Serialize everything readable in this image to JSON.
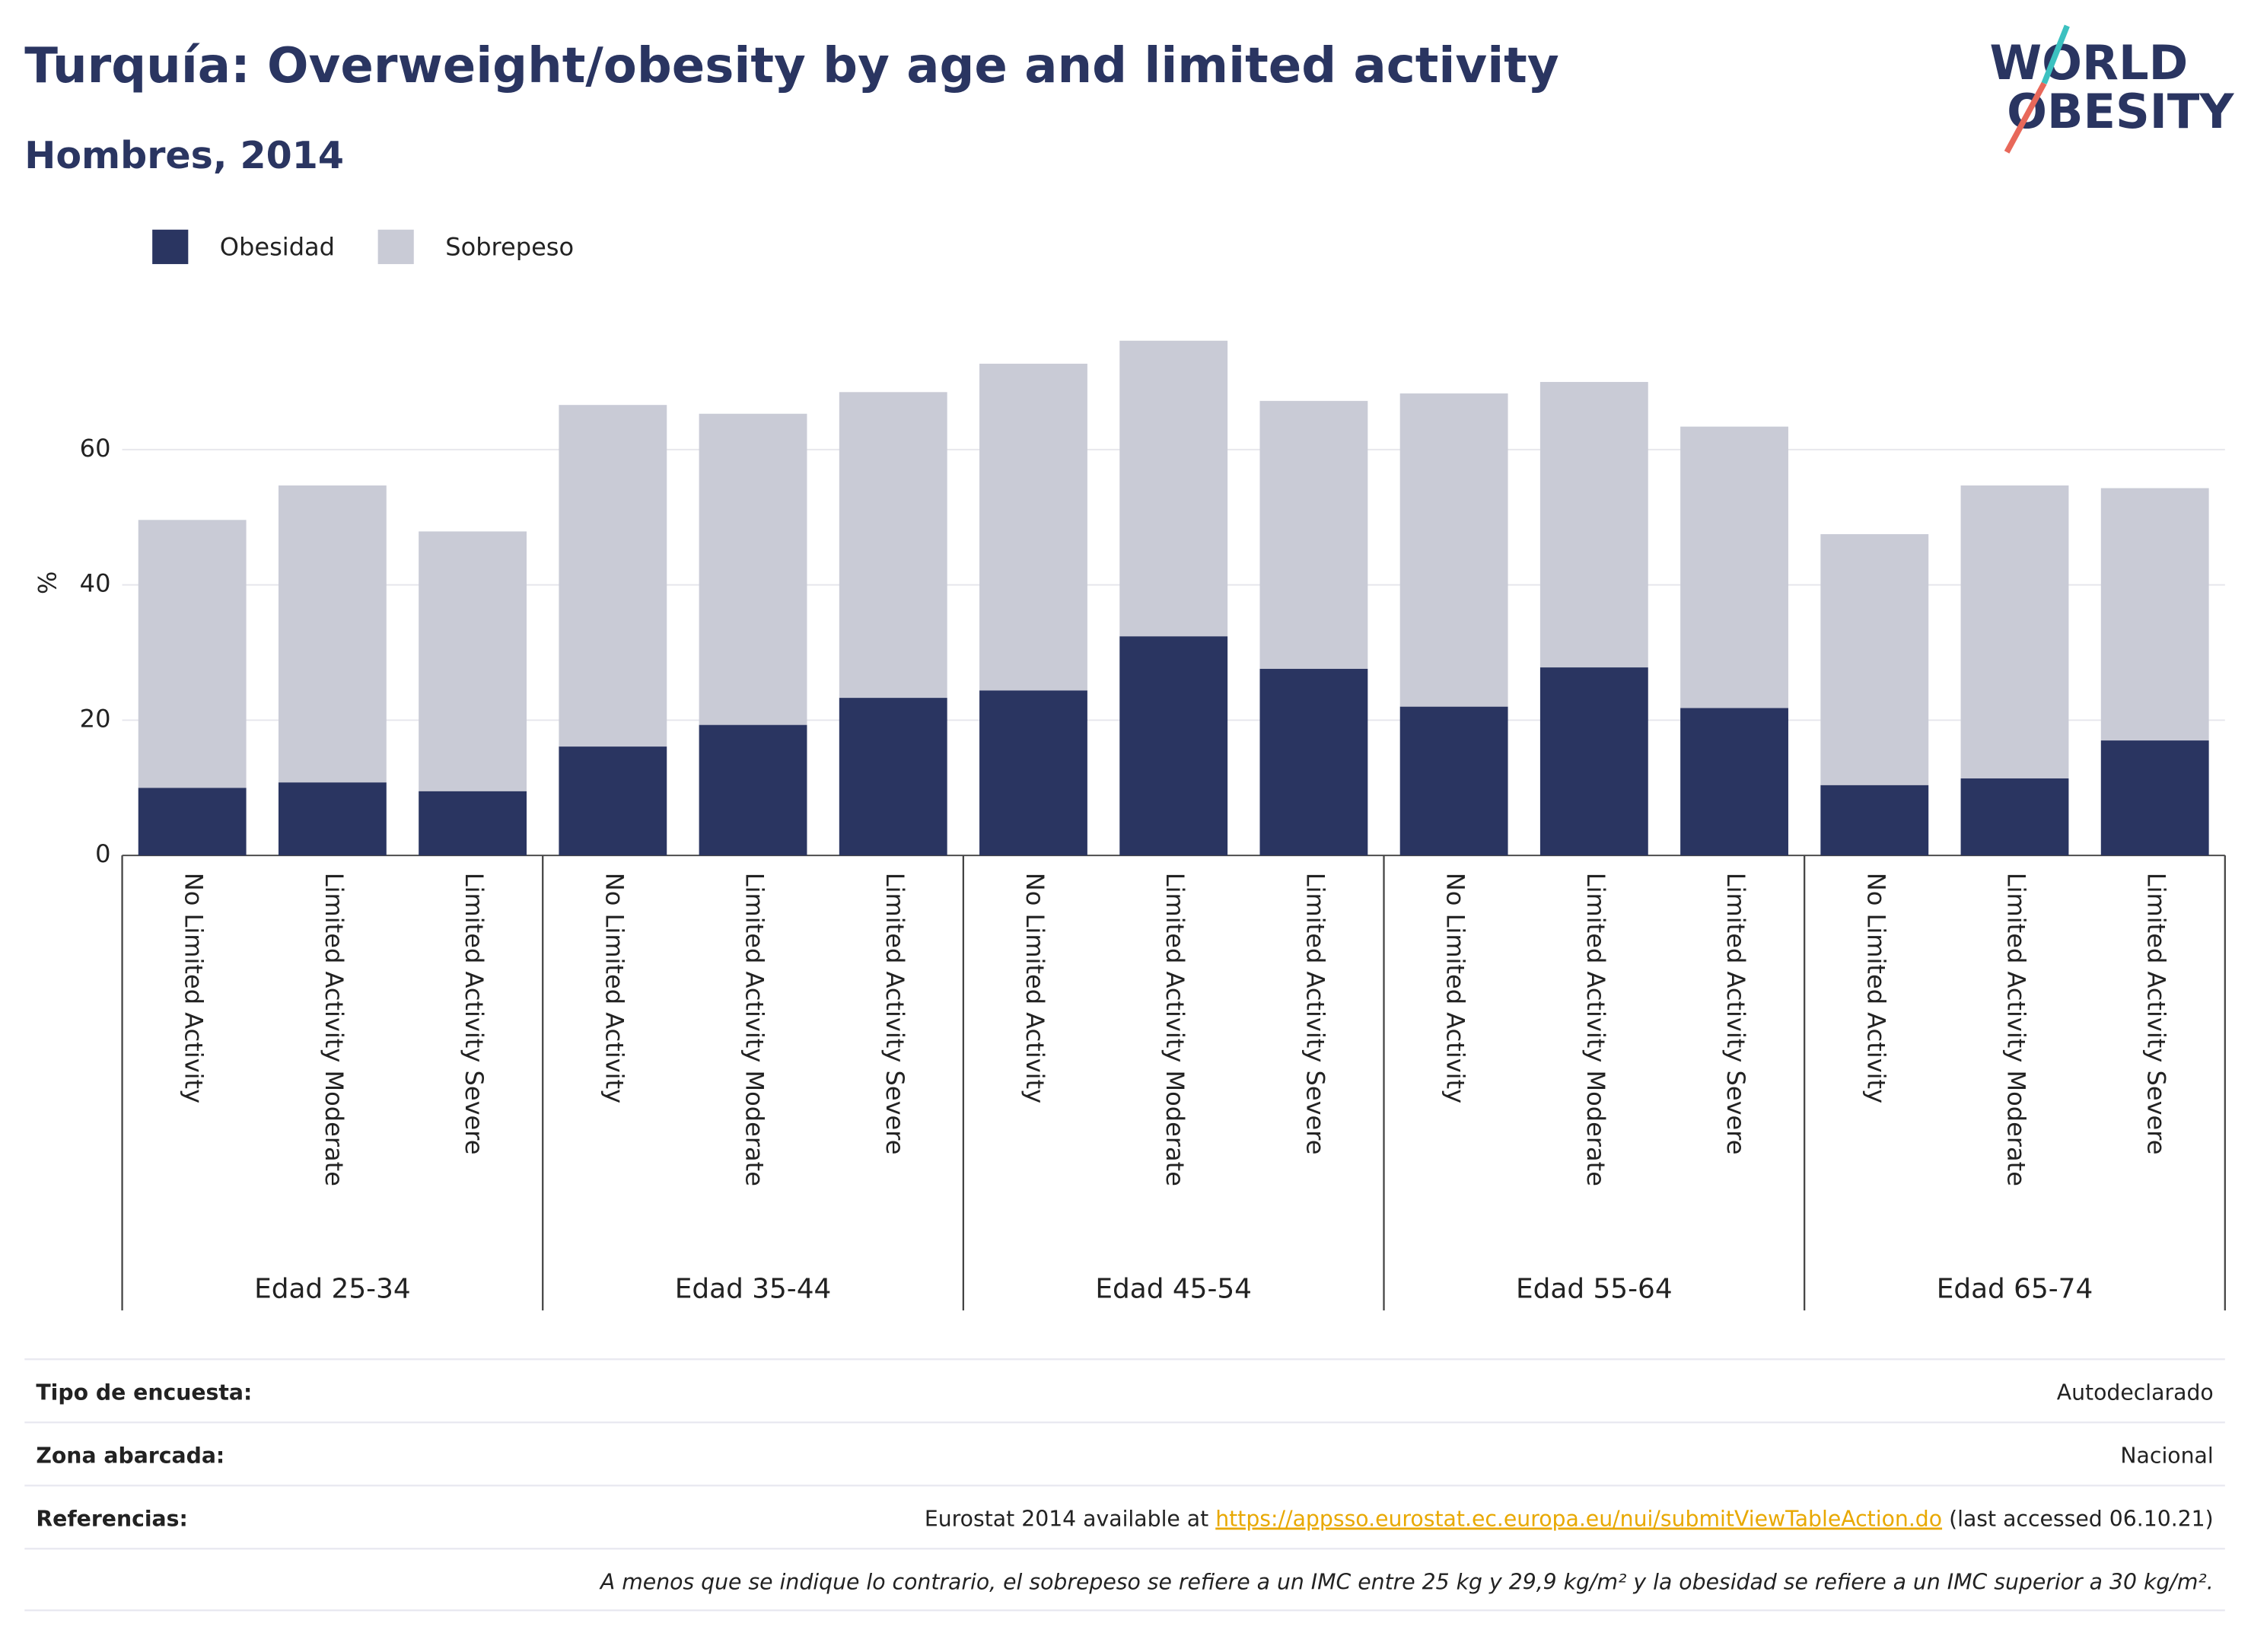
{
  "chart_data": {
    "type": "stacked_bar",
    "title": "Turquía: Overweight/obesity by age and limited activity",
    "subtitle": "Hombres, 2014",
    "y_label": "%",
    "logo": {
      "line1": "WORLD",
      "line2": "OBESITY"
    },
    "groups": [
      {
        "name": "Edad 25-34",
        "categories": [
          "No Limited Activity",
          "Limited Activity Moderate",
          "Limited Activity Severe"
        ]
      },
      {
        "name": "Edad 35-44",
        "categories": [
          "No Limited Activity",
          "Limited Activity Moderate",
          "Limited Activity Severe"
        ]
      },
      {
        "name": "Edad 45-54",
        "categories": [
          "No Limited Activity",
          "Limited Activity Moderate",
          "Limited Activity Severe"
        ]
      },
      {
        "name": "Edad 55-64",
        "categories": [
          "No Limited Activity",
          "Limited Activity Moderate",
          "Limited Activity Severe"
        ]
      },
      {
        "name": "Edad 65-74",
        "categories": [
          "No Limited Activity",
          "Limited Activity Moderate",
          "Limited Activity Severe"
        ]
      }
    ],
    "series": [
      {
        "name": "Obesidad",
        "color": "#2a3561",
        "values": [
          10.0,
          10.8,
          9.5,
          16.1,
          19.3,
          23.3,
          24.4,
          32.4,
          27.6,
          22.0,
          27.8,
          21.8,
          10.4,
          11.4,
          17.0
        ]
      },
      {
        "name": "Sobrepeso",
        "color": "#c9cbd6",
        "values": [
          39.6,
          43.9,
          38.4,
          50.5,
          46.0,
          45.2,
          48.3,
          43.7,
          39.6,
          46.3,
          42.2,
          41.6,
          37.1,
          43.3,
          37.3
        ]
      }
    ],
    "ylim": [
      0,
      80
    ],
    "yticks": [
      0,
      20,
      40,
      60
    ],
    "grid": true,
    "legend": "top-left"
  },
  "footer": {
    "rows": [
      {
        "label": "Tipo de encuesta:",
        "value": "Autodeclarado"
      },
      {
        "label": "Zona abarcada:",
        "value": "Nacional"
      },
      {
        "label": "Referencias:",
        "value": [
          "Eurostat 2014 available at ",
          "https://appsso.eurostat.ec.europa.eu/nui/submitViewTableAction.do",
          " (last accessed 06.10.21)"
        ]
      }
    ],
    "note": "A menos que se indique lo contrario, el sobrepeso se refiere a un IMC entre 25 kg y 29,9 kg/m² y la obesidad se refiere a un IMC superior a 30 kg/m²."
  }
}
